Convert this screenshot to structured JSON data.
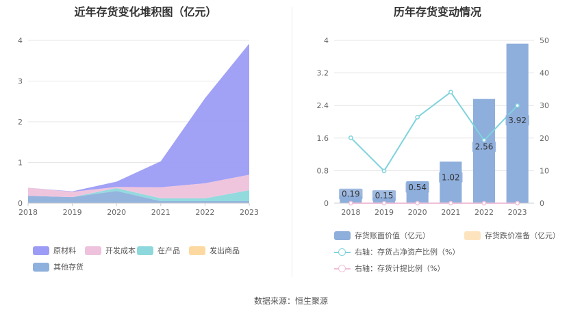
{
  "source_text": "数据来源：恒生聚源",
  "chart_data": [
    {
      "type": "area",
      "title": "近年存货变化堆积图（亿元）",
      "x": [
        "2018",
        "2019",
        "2020",
        "2021",
        "2022",
        "2023"
      ],
      "ylim": [
        0,
        4
      ],
      "yticks": [
        "0",
        "1",
        "2",
        "3",
        "4"
      ],
      "stacked": true,
      "series": [
        {
          "name": "其他存货",
          "color": "#8eb0dc",
          "values": [
            0.18,
            0.15,
            0.3,
            0.05,
            0.05,
            0.05
          ]
        },
        {
          "name": "发出商品",
          "color": "#fcd9a0",
          "values": [
            0.0,
            0.0,
            0.0,
            0.0,
            0.0,
            0.0
          ]
        },
        {
          "name": "在产品",
          "color": "#8dd8dc",
          "values": [
            0.0,
            0.0,
            0.07,
            0.07,
            0.07,
            0.27
          ]
        },
        {
          "name": "开发成本",
          "color": "#eec2dc",
          "values": [
            0.2,
            0.13,
            0.03,
            0.27,
            0.37,
            0.38
          ]
        },
        {
          "name": "原材料",
          "color": "#9c9cf6",
          "values": [
            0.0,
            0.01,
            0.13,
            0.64,
            2.09,
            3.22
          ]
        }
      ],
      "legend": {
        "position": "bottom",
        "items": [
          "原材料",
          "开发成本",
          "在产品",
          "发出商品",
          "其他存货"
        ]
      },
      "grid": true
    },
    {
      "type": "bar",
      "title": "历年存货变动情况",
      "categories": [
        "2018",
        "2019",
        "2020",
        "2021",
        "2022",
        "2023"
      ],
      "ylim": [
        0,
        4
      ],
      "yticks": [
        "0",
        "0.8",
        "1.6",
        "2.4",
        "3.2",
        "4"
      ],
      "y2lim": [
        0,
        50
      ],
      "y2ticks": [
        "0",
        "10",
        "20",
        "30",
        "40",
        "50"
      ],
      "series": [
        {
          "name": "存货账面价值（亿元）",
          "type": "bar",
          "axis": "left",
          "color": "#8eaedc",
          "values": [
            0.19,
            0.15,
            0.54,
            1.02,
            2.56,
            3.92
          ],
          "labels": [
            "0.19",
            "0.15",
            "0.54",
            "1.02",
            "2.56",
            "3.92"
          ]
        },
        {
          "name": "存货跌价准备（亿元）",
          "type": "bar",
          "axis": "left",
          "color": "#fde4bf",
          "values": [
            0,
            0,
            0,
            0,
            0,
            0
          ]
        },
        {
          "name": "右轴：存货占净资产比例（%）",
          "type": "line",
          "axis": "right",
          "color": "#7fd3dc",
          "values": [
            20.1,
            9.9,
            26.4,
            34.1,
            19.3,
            30.0
          ]
        },
        {
          "name": "右轴：存货计提比例（%）",
          "type": "line",
          "axis": "right",
          "color": "#eec0d8",
          "values": [
            0,
            0,
            0,
            0,
            0,
            0
          ]
        }
      ],
      "legend": {
        "position": "bottom"
      },
      "grid": true
    }
  ]
}
